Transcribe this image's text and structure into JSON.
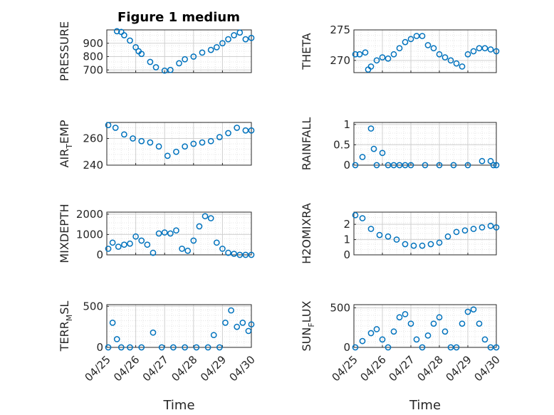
{
  "title": "Figure 1 medium",
  "xlabel": "Time",
  "x_tick_labels": [
    "04/25",
    "04/26",
    "04/27",
    "04/28",
    "04/29",
    "04/30"
  ],
  "marker_color": "#0072BD",
  "chart_data": [
    {
      "type": "scatter",
      "ylabel": "PRESSURE",
      "ylim": [
        680,
        1000
      ],
      "yticks": [
        700,
        800,
        900
      ],
      "grid": "major+minor",
      "x": [
        0.35,
        0.5,
        0.6,
        0.8,
        1.0,
        1.1,
        1.2,
        1.5,
        1.7,
        2.0,
        2.2,
        2.5,
        2.7,
        3.0,
        3.3,
        3.6,
        3.8,
        4.0,
        4.2,
        4.4,
        4.6,
        4.8,
        5.0
      ],
      "y": [
        990,
        985,
        960,
        920,
        870,
        840,
        820,
        760,
        720,
        695,
        700,
        750,
        780,
        800,
        830,
        850,
        870,
        900,
        930,
        960,
        980,
        930,
        940
      ]
    },
    {
      "type": "scatter",
      "ylabel": "THETA",
      "ylim": [
        268,
        275
      ],
      "yticks": [
        270,
        275
      ],
      "grid": "major+minor",
      "x": [
        0.05,
        0.2,
        0.4,
        0.5,
        0.6,
        0.8,
        1.0,
        1.2,
        1.4,
        1.6,
        1.8,
        2.0,
        2.2,
        2.4,
        2.6,
        2.8,
        3.0,
        3.2,
        3.4,
        3.6,
        3.8,
        4.0,
        4.2,
        4.4,
        4.6,
        4.8,
        5.0
      ],
      "y": [
        271,
        271,
        271.3,
        268.5,
        269,
        270,
        270.5,
        270.3,
        271,
        272,
        273,
        273.5,
        274,
        274,
        272.5,
        272,
        271,
        270.5,
        270,
        269.5,
        269,
        271,
        271.5,
        272,
        272,
        271.8,
        271.5
      ]
    },
    {
      "type": "scatter",
      "ylabel": "AIR_T_EMP",
      "ylim": [
        240,
        272
      ],
      "yticks": [
        240,
        260
      ],
      "grid": "major+minor",
      "x": [
        0.05,
        0.3,
        0.6,
        0.9,
        1.2,
        1.5,
        1.8,
        2.1,
        2.4,
        2.7,
        3.0,
        3.3,
        3.6,
        3.9,
        4.2,
        4.5,
        4.8,
        5.0
      ],
      "y": [
        270,
        268,
        263,
        260,
        258,
        257,
        254,
        247,
        250,
        254,
        256,
        257,
        258,
        261,
        264,
        268,
        266,
        266
      ]
    },
    {
      "type": "scatter",
      "ylabel": "RAINFALL",
      "ylim": [
        0,
        1.05
      ],
      "yticks": [
        0,
        0.5,
        1
      ],
      "grid": "major+minor",
      "x": [
        0.05,
        0.3,
        0.6,
        0.7,
        0.8,
        1.0,
        1.2,
        1.4,
        1.6,
        1.8,
        2.0,
        2.5,
        3.0,
        3.5,
        4.0,
        4.5,
        4.8,
        4.9,
        5.0
      ],
      "y": [
        0,
        0.2,
        0.9,
        0.4,
        0,
        0.3,
        0,
        0,
        0,
        0,
        0,
        0,
        0,
        0,
        0,
        0.1,
        0.1,
        0,
        0
      ]
    },
    {
      "type": "scatter",
      "ylabel": "MIXDEPTH",
      "ylim": [
        0,
        2100
      ],
      "yticks": [
        0,
        1000,
        2000
      ],
      "grid": "major+minor",
      "x": [
        0.05,
        0.2,
        0.4,
        0.6,
        0.8,
        1.0,
        1.2,
        1.4,
        1.6,
        1.8,
        2.0,
        2.2,
        2.4,
        2.6,
        2.8,
        3.0,
        3.2,
        3.4,
        3.6,
        3.8,
        4.0,
        4.2,
        4.4,
        4.6,
        4.8,
        5.0
      ],
      "y": [
        300,
        600,
        400,
        500,
        550,
        900,
        700,
        500,
        100,
        1050,
        1100,
        1050,
        1200,
        300,
        200,
        700,
        1400,
        1900,
        1800,
        600,
        300,
        100,
        50,
        0,
        0,
        0
      ]
    },
    {
      "type": "scatter",
      "ylabel": "H2OMIXRA",
      "ylim": [
        0,
        2.8
      ],
      "yticks": [
        0,
        1,
        2
      ],
      "grid": "major+minor",
      "x": [
        0.05,
        0.3,
        0.6,
        0.9,
        1.2,
        1.5,
        1.8,
        2.1,
        2.4,
        2.7,
        3.0,
        3.3,
        3.6,
        3.9,
        4.2,
        4.5,
        4.8,
        5.0
      ],
      "y": [
        2.6,
        2.4,
        1.7,
        1.3,
        1.2,
        1.0,
        0.7,
        0.6,
        0.6,
        0.7,
        0.8,
        1.2,
        1.5,
        1.6,
        1.7,
        1.8,
        1.9,
        1.8
      ]
    },
    {
      "type": "scatter",
      "ylabel": "TERR_M_SL",
      "ylim": [
        0,
        520
      ],
      "yticks": [
        0,
        500
      ],
      "grid": "major+minor",
      "x": [
        0.05,
        0.2,
        0.35,
        0.5,
        0.8,
        1.2,
        1.6,
        1.9,
        2.3,
        2.7,
        3.1,
        3.5,
        3.7,
        3.9,
        4.1,
        4.3,
        4.5,
        4.7,
        4.9,
        5.0
      ],
      "y": [
        0,
        300,
        100,
        0,
        0,
        0,
        180,
        0,
        0,
        0,
        0,
        0,
        150,
        0,
        300,
        450,
        250,
        300,
        200,
        280
      ]
    },
    {
      "type": "scatter",
      "ylabel": "SUN_F_LUX",
      "ylim": [
        0,
        540
      ],
      "yticks": [
        0,
        500
      ],
      "grid": "major+minor",
      "x": [
        0.05,
        0.3,
        0.6,
        0.8,
        1.0,
        1.2,
        1.4,
        1.6,
        1.8,
        2.0,
        2.2,
        2.4,
        2.6,
        2.8,
        3.0,
        3.2,
        3.4,
        3.6,
        3.8,
        4.0,
        4.2,
        4.4,
        4.6,
        4.8,
        5.0
      ],
      "y": [
        0,
        80,
        180,
        230,
        100,
        0,
        200,
        380,
        420,
        300,
        100,
        0,
        150,
        300,
        380,
        200,
        0,
        0,
        300,
        450,
        480,
        300,
        100,
        0,
        0
      ]
    }
  ]
}
